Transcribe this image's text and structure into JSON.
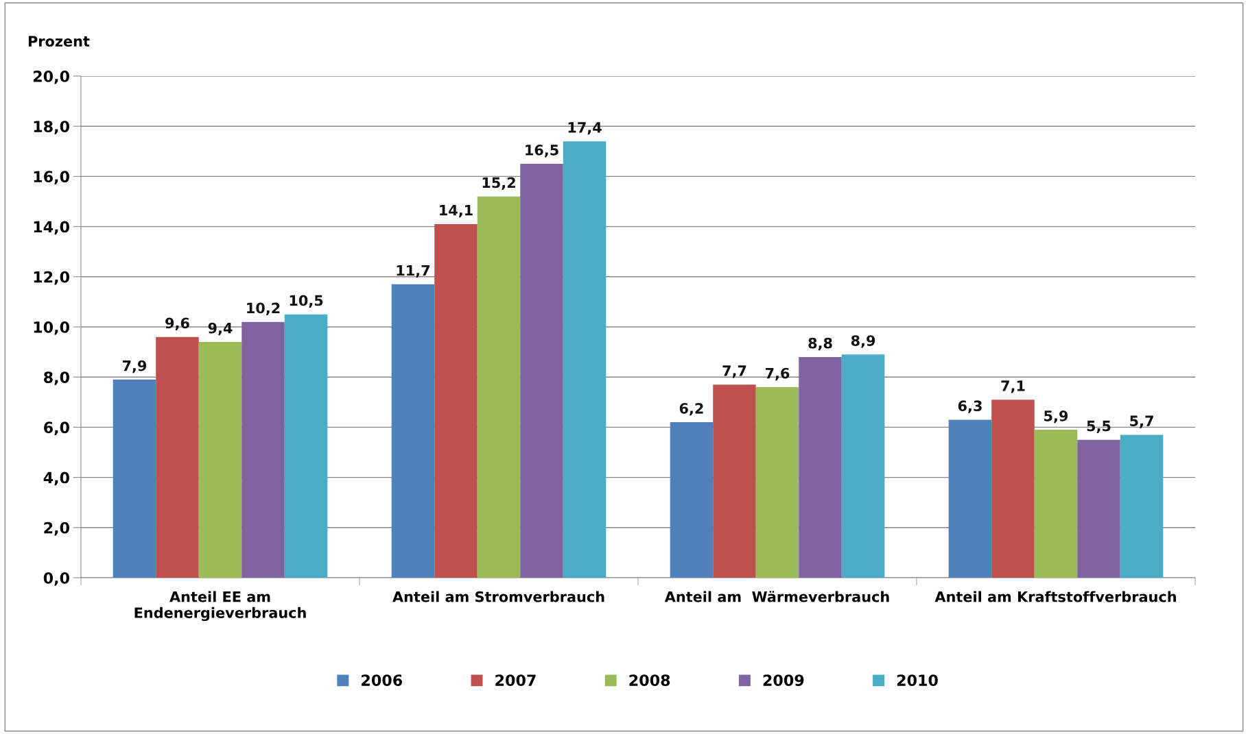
{
  "chart_data": {
    "type": "bar",
    "ylabel": "Prozent",
    "categories": [
      "Anteil EE am\nEndenergieverbrauch",
      "Anteil am Stromverbrauch",
      "Anteil am  Wärmeverbrauch",
      "Anteil am Kraftstoffverbrauch"
    ],
    "series": [
      {
        "name": "2006",
        "color": "#4f81bd",
        "values": [
          7.9,
          11.7,
          6.2,
          6.3
        ],
        "value_labels": [
          "7,9",
          "11,7",
          "6,2",
          "6,3"
        ]
      },
      {
        "name": "2007",
        "color": "#c0504d",
        "values": [
          9.6,
          14.1,
          7.7,
          7.1
        ],
        "value_labels": [
          "9,6",
          "14,1",
          "7,7",
          "7,1"
        ]
      },
      {
        "name": "2008",
        "color": "#9bbb59",
        "values": [
          9.4,
          15.2,
          7.6,
          5.9
        ],
        "value_labels": [
          "9,4",
          "15,2",
          "7,6",
          "5,9"
        ]
      },
      {
        "name": "2009",
        "color": "#8064a2",
        "values": [
          10.2,
          16.5,
          8.8,
          5.5
        ],
        "value_labels": [
          "10,2",
          "16,5",
          "8,8",
          "5,5"
        ]
      },
      {
        "name": "2010",
        "color": "#4bacc6",
        "values": [
          10.5,
          17.4,
          8.9,
          5.7
        ],
        "value_labels": [
          "10,5",
          "17,4",
          "8,9",
          "5,7"
        ]
      }
    ],
    "ylim": [
      0,
      20
    ],
    "yticks": [
      {
        "value": 0,
        "label": "0,0"
      },
      {
        "value": 2,
        "label": "2,0"
      },
      {
        "value": 4,
        "label": "4,0"
      },
      {
        "value": 6,
        "label": "6,0"
      },
      {
        "value": 8,
        "label": "8,0"
      },
      {
        "value": 10,
        "label": "10,0"
      },
      {
        "value": 12,
        "label": "12,0"
      },
      {
        "value": 14,
        "label": "14,0"
      },
      {
        "value": 16,
        "label": "16,0"
      },
      {
        "value": 18,
        "label": "18,0"
      },
      {
        "value": 20,
        "label": "20,0"
      }
    ],
    "grid": "y",
    "legend": "bottom"
  }
}
